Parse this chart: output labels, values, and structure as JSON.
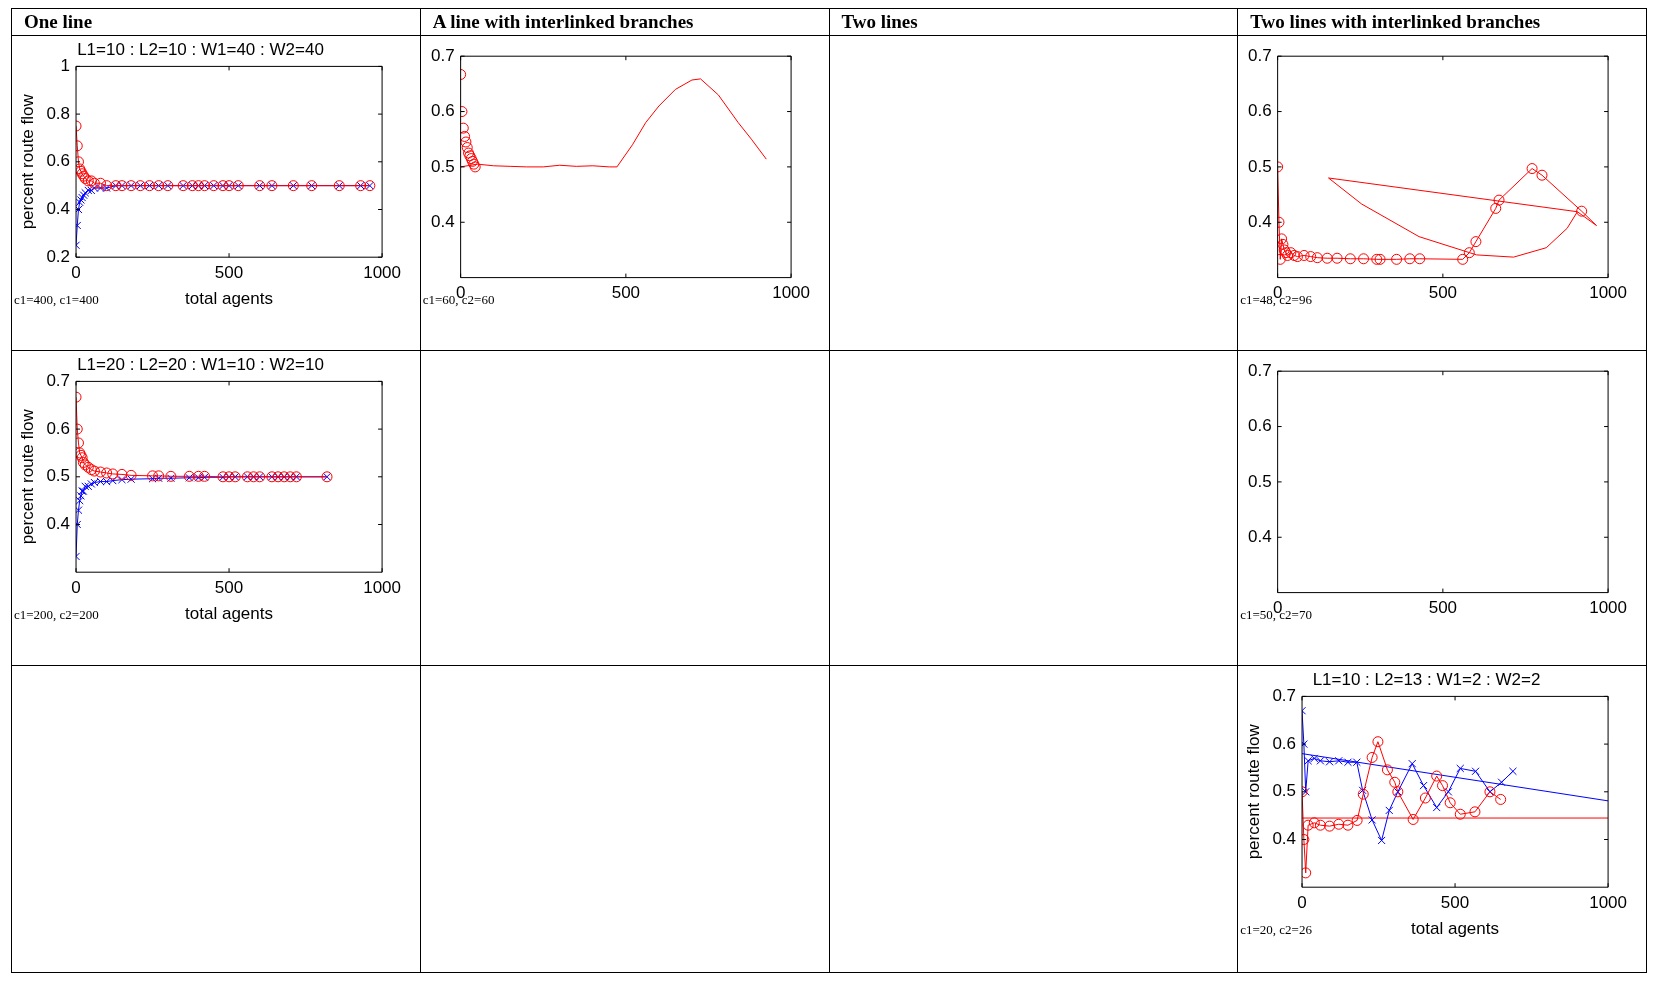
{
  "chart_data": [
    {
      "type": "other",
      "annotations": [
        "One line",
        "A line with interlinked branches",
        "Two lines",
        "Two lines with interlinked branches"
      ]
    },
    {
      "type": "line",
      "title": "L1=10 : L2=10 : W1=40 : W2=40",
      "xlabel": "total agents",
      "ylabel": "percent route flow",
      "annotations": [
        "c1=400, c1=400"
      ],
      "xlim": [
        0,
        1000
      ],
      "ylim": [
        0.2,
        1
      ],
      "xticks": [
        0,
        500,
        1000
      ],
      "yticks": [
        0.2,
        0.4,
        0.6,
        0.8,
        1
      ],
      "grid": false,
      "legend": false,
      "series": [
        {
          "type": "line",
          "color": "#ff0000",
          "marker": "circle",
          "x": [
            0,
            4,
            8,
            12,
            16,
            20,
            25,
            30,
            40,
            50,
            60,
            80,
            100,
            130,
            150,
            180,
            210,
            240,
            270,
            300,
            350,
            380,
            400,
            420,
            450,
            480,
            500,
            530,
            600,
            640,
            710,
            770,
            860,
            930,
            960
          ],
          "values": [
            0.75,
            0.667,
            0.6,
            0.57,
            0.56,
            0.55,
            0.54,
            0.53,
            0.52,
            0.52,
            0.51,
            0.51,
            0.5,
            0.5,
            0.5,
            0.5,
            0.5,
            0.5,
            0.5,
            0.5,
            0.5,
            0.5,
            0.5,
            0.5,
            0.5,
            0.5,
            0.5,
            0.5,
            0.5,
            0.5,
            0.5,
            0.5,
            0.5,
            0.5,
            0.5
          ]
        },
        {
          "type": "line",
          "color": "#0000ff",
          "marker": "cross",
          "x": [
            0,
            4,
            8,
            12,
            16,
            20,
            25,
            30,
            40,
            50,
            60,
            80,
            100,
            130,
            150,
            180,
            210,
            240,
            270,
            300,
            350,
            380,
            400,
            420,
            450,
            480,
            500,
            530,
            600,
            640,
            710,
            770,
            860,
            930,
            960
          ],
          "values": [
            0.25,
            0.333,
            0.4,
            0.43,
            0.44,
            0.45,
            0.46,
            0.47,
            0.48,
            0.48,
            0.49,
            0.49,
            0.49,
            0.5,
            0.5,
            0.5,
            0.5,
            0.5,
            0.5,
            0.5,
            0.5,
            0.5,
            0.5,
            0.5,
            0.5,
            0.5,
            0.5,
            0.5,
            0.5,
            0.5,
            0.5,
            0.5,
            0.5,
            0.5,
            0.5
          ]
        }
      ]
    },
    {
      "type": "line",
      "annotations": [
        "c1=60, c2=60"
      ],
      "xlim": [
        0,
        1000
      ],
      "ylim": [
        0.3,
        0.7
      ],
      "xticks": [
        0,
        500,
        1000
      ],
      "yticks": [
        0.4,
        0.5,
        0.6,
        0.7
      ],
      "grid": false,
      "legend": false,
      "series": [
        {
          "type": "line",
          "color": "#ff0000",
          "marker": "none",
          "x": [
            0,
            50,
            100,
            150,
            200,
            250,
            300,
            350,
            400,
            450,
            473,
            520,
            560,
            600,
            650,
            700,
            726,
            780,
            840,
            880,
            925
          ],
          "values": [
            0.5,
            0.505,
            0.502,
            0.501,
            0.5,
            0.5,
            0.503,
            0.501,
            0.502,
            0.5,
            0.5,
            0.54,
            0.58,
            0.61,
            0.64,
            0.657,
            0.659,
            0.63,
            0.58,
            0.55,
            0.514
          ]
        },
        {
          "type": "scatter",
          "color": "#ff0000",
          "marker": "circle",
          "x": [
            0,
            4,
            8,
            12,
            16,
            20,
            24,
            28,
            32,
            36,
            40,
            44
          ],
          "values": [
            0.667,
            0.6,
            0.57,
            0.555,
            0.545,
            0.535,
            0.525,
            0.52,
            0.515,
            0.51,
            0.505,
            0.5
          ]
        }
      ]
    },
    {
      "type": "line",
      "annotations": [
        "c1=48, c2=96"
      ],
      "xlim": [
        0,
        1000
      ],
      "ylim": [
        0.3,
        0.7
      ],
      "xticks": [
        0,
        500,
        1000
      ],
      "yticks": [
        0.4,
        0.5,
        0.6,
        0.7
      ],
      "grid": false,
      "legend": false,
      "series": [
        {
          "type": "line",
          "color": "#ff0000",
          "marker": "circle",
          "x": [
            0,
            4,
            8,
            12,
            16,
            20,
            25,
            30,
            40,
            50,
            60,
            80,
            100,
            120,
            150,
            180,
            220,
            260,
            300,
            310,
            360,
            400,
            430,
            560,
            580,
            600,
            660,
            670,
            770,
            800,
            920
          ],
          "values": [
            0.5,
            0.4,
            0.333,
            0.37,
            0.36,
            0.35,
            0.345,
            0.34,
            0.345,
            0.34,
            0.338,
            0.34,
            0.338,
            0.336,
            0.335,
            0.335,
            0.334,
            0.334,
            0.333,
            0.333,
            0.333,
            0.334,
            0.334,
            0.333,
            0.345,
            0.365,
            0.425,
            0.44,
            0.497,
            0.485,
            0.42
          ]
        },
        {
          "type": "line",
          "color": "#ff0000",
          "marker": "none",
          "x": [
            920,
            965,
            907,
            876,
            813,
            714,
            602,
            428,
            254,
            154,
            907
          ],
          "values": [
            0.42,
            0.394,
            0.419,
            0.389,
            0.354,
            0.337,
            0.341,
            0.374,
            0.433,
            0.48,
            0.419
          ]
        }
      ]
    },
    {
      "type": "line",
      "title": "L1=20 : L2=20 : W1=10 : W2=10",
      "xlabel": "total agents",
      "ylabel": "percent route flow",
      "annotations": [
        "c1=200, c2=200"
      ],
      "xlim": [
        0,
        1000
      ],
      "ylim": [
        0.3,
        0.7
      ],
      "xticks": [
        0,
        500,
        1000
      ],
      "yticks": [
        0.4,
        0.5,
        0.6,
        0.7
      ],
      "grid": false,
      "legend": false,
      "series": [
        {
          "type": "line",
          "color": "#ff0000",
          "marker": "circle",
          "x": [
            0,
            4,
            8,
            12,
            16,
            20,
            24,
            30,
            40,
            50,
            60,
            80,
            100,
            120,
            150,
            180,
            250,
            270,
            310,
            370,
            400,
            420,
            480,
            500,
            520,
            560,
            580,
            600,
            640,
            660,
            680,
            700,
            720,
            820
          ],
          "values": [
            0.667,
            0.6,
            0.571,
            0.55,
            0.545,
            0.54,
            0.53,
            0.525,
            0.52,
            0.515,
            0.512,
            0.51,
            0.508,
            0.506,
            0.505,
            0.503,
            0.502,
            0.502,
            0.501,
            0.501,
            0.501,
            0.501,
            0.5,
            0.5,
            0.5,
            0.5,
            0.5,
            0.5,
            0.5,
            0.5,
            0.5,
            0.5,
            0.5,
            0.5
          ]
        },
        {
          "type": "line",
          "color": "#0000ff",
          "marker": "cross",
          "x": [
            0,
            4,
            8,
            12,
            16,
            20,
            24,
            30,
            40,
            50,
            60,
            80,
            100,
            120,
            150,
            180,
            250,
            270,
            310,
            370,
            400,
            420,
            480,
            500,
            520,
            560,
            580,
            600,
            640,
            660,
            680,
            700,
            720,
            820
          ],
          "values": [
            0.333,
            0.4,
            0.43,
            0.45,
            0.46,
            0.47,
            0.47,
            0.48,
            0.48,
            0.485,
            0.488,
            0.49,
            0.49,
            0.492,
            0.494,
            0.495,
            0.496,
            0.497,
            0.497,
            0.498,
            0.498,
            0.499,
            0.499,
            0.5,
            0.5,
            0.5,
            0.5,
            0.5,
            0.5,
            0.5,
            0.5,
            0.5,
            0.5,
            0.5
          ]
        }
      ]
    },
    {
      "type": "line",
      "annotations": [
        "c1=50, c2=70"
      ],
      "xlim": [
        0,
        1000
      ],
      "ylim": [
        0.3,
        0.7
      ],
      "xticks": [
        0,
        500,
        1000
      ],
      "yticks": [
        0.4,
        0.5,
        0.6,
        0.7
      ],
      "grid": false,
      "legend": false
    },
    {
      "type": "line",
      "title": "L1=10 : L2=13 : W1=2 : W2=2",
      "xlabel": "total agents",
      "ylabel": "percent route flow",
      "annotations": [
        "c1=20, c2=26"
      ],
      "xlim": [
        0,
        1000
      ],
      "ylim": [
        0.3,
        0.7
      ],
      "xticks": [
        0,
        500,
        1000
      ],
      "yticks": [
        0.4,
        0.5,
        0.6,
        0.7
      ],
      "grid": false,
      "legend": false,
      "series": [
        {
          "type": "line",
          "color": "#ff0000",
          "marker": "circle",
          "x": [
            0,
            6,
            12,
            20,
            40,
            60,
            90,
            120,
            150,
            180,
            200,
            229,
            248,
            279,
            303,
            313,
            363,
            403,
            440,
            459,
            484,
            517,
            565,
            614,
            649
          ],
          "values": [
            0.5,
            0.4,
            0.33,
            0.43,
            0.435,
            0.43,
            0.428,
            0.432,
            0.43,
            0.44,
            0.495,
            0.572,
            0.605,
            0.546,
            0.52,
            0.5,
            0.442,
            0.487,
            0.533,
            0.513,
            0.477,
            0.453,
            0.458,
            0.5,
            0.484
          ]
        },
        {
          "type": "line",
          "color": "#0000ff",
          "marker": "cross",
          "x": [
            0,
            6,
            12,
            20,
            40,
            60,
            90,
            120,
            150,
            179,
            198,
            229,
            260,
            285,
            313,
            360,
            397,
            440,
            478,
            517,
            567,
            614,
            652,
            689
          ],
          "values": [
            0.67,
            0.6,
            0.5,
            0.565,
            0.57,
            0.565,
            0.563,
            0.565,
            0.562,
            0.562,
            0.503,
            0.441,
            0.398,
            0.461,
            0.5,
            0.559,
            0.513,
            0.467,
            0.5,
            0.549,
            0.543,
            0.5,
            0.52,
            0.543
          ]
        },
        {
          "type": "line",
          "color": "#0000ff",
          "marker": "none",
          "x": [
            0,
            1000
          ],
          "values": [
            0.58,
            0.481
          ]
        },
        {
          "type": "line",
          "color": "#ff0000",
          "marker": "none",
          "x": [
            0,
            1000
          ],
          "values": [
            0.445,
            0.445
          ]
        }
      ]
    }
  ]
}
